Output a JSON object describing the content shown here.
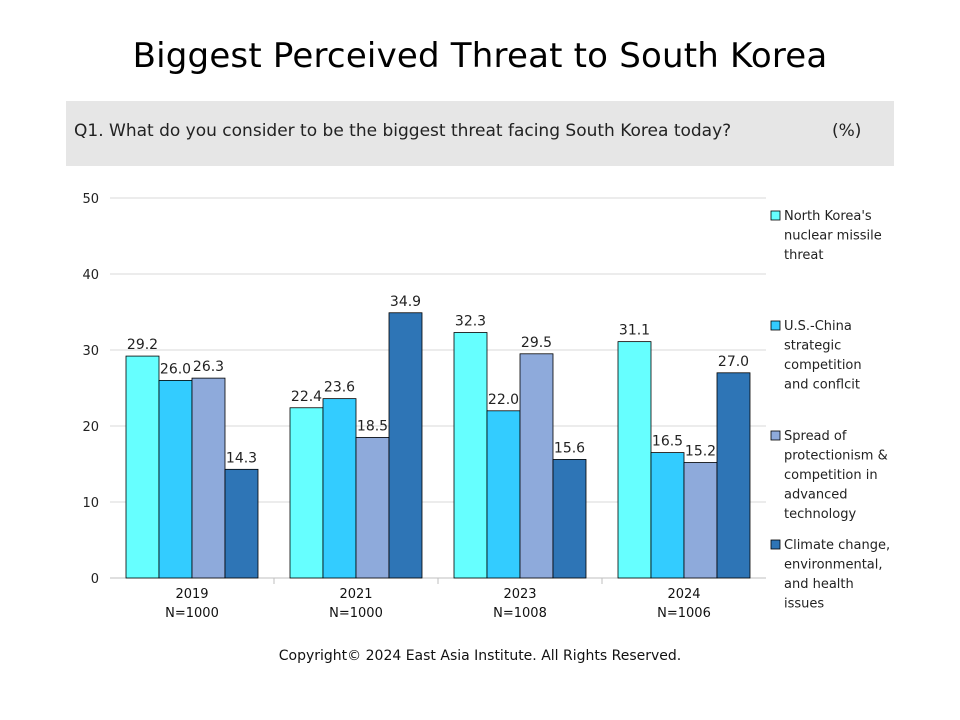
{
  "title": "Biggest Perceived Threat to South Korea",
  "question": "Q1. What do you consider to be the biggest threat facing South Korea today?",
  "unit": "(%)",
  "copyright": "Copyright© 2024 East Asia Institute. All Rights Reserved.",
  "chart_data": {
    "type": "bar",
    "categories": [
      "2019",
      "2021",
      "2023",
      "2024"
    ],
    "category_sublabels": [
      "N=1000",
      "N=1000",
      "N=1008",
      "N=1006"
    ],
    "ylim": [
      0,
      50
    ],
    "yticks": [
      0,
      10,
      20,
      30,
      40,
      50
    ],
    "grid": true,
    "legend_position": "right",
    "series": [
      {
        "name": "North Korea's nuclear missile threat",
        "legend_lines": [
          "North Korea's",
          "nuclear missile",
          "threat"
        ],
        "color": "#66ffff",
        "values": [
          29.2,
          22.4,
          32.3,
          31.1
        ],
        "labels": [
          "29.2",
          "22.4",
          "32.3",
          "31.1"
        ]
      },
      {
        "name": "U.S.-China strategic competition and conflcit",
        "legend_lines": [
          "U.S.-China",
          "strategic",
          "competition",
          "and conflcit"
        ],
        "color": "#33ccff",
        "values": [
          26.0,
          23.6,
          22.0,
          16.5
        ],
        "labels": [
          "26.0",
          "23.6",
          "22.0",
          "16.5"
        ]
      },
      {
        "name": "Spread of protectionism & competition in advanced technology",
        "legend_lines": [
          "Spread of",
          "protectionism &",
          "competition in",
          "advanced",
          "technology"
        ],
        "color": "#8eaadb",
        "values": [
          26.3,
          18.5,
          29.5,
          15.2
        ],
        "labels": [
          "26.3",
          "18.5",
          "29.5",
          "15.2"
        ]
      },
      {
        "name": "Climate change, environmental, and health issues",
        "legend_lines": [
          "Climate change,",
          "environmental,",
          "and health",
          "issues"
        ],
        "color": "#2e75b6",
        "values": [
          14.3,
          34.9,
          15.6,
          27.0
        ],
        "labels": [
          "14.3",
          "34.9",
          "15.6",
          "27.0"
        ]
      }
    ]
  }
}
